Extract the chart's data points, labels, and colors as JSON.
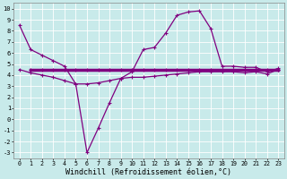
{
  "xlabel": "Windchill (Refroidissement éolien,°C)",
  "bg_color": "#c8eaea",
  "line_color": "#800080",
  "grid_color": "#aacccc",
  "ylim": [
    -3.5,
    10.5
  ],
  "xlim": [
    -0.5,
    23.5
  ],
  "yticks": [
    10,
    9,
    8,
    7,
    6,
    5,
    4,
    3,
    2,
    1,
    0,
    -1,
    -2,
    -3
  ],
  "s1_x": [
    0,
    1,
    2,
    3,
    4,
    5,
    6,
    7,
    8,
    9,
    10,
    11,
    12,
    13,
    14,
    15,
    16,
    17,
    18,
    19,
    20,
    21,
    22,
    23
  ],
  "s1_y": [
    8.5,
    6.3,
    5.8,
    5.3,
    4.8,
    3.2,
    -3.0,
    -0.8,
    1.5,
    3.7,
    4.3,
    6.3,
    6.5,
    7.8,
    9.4,
    9.7,
    9.8,
    8.2,
    4.8,
    4.8,
    4.7,
    4.7,
    4.3,
    4.6
  ],
  "s2_x": [
    1,
    2,
    3,
    4,
    5,
    6,
    7,
    8,
    9,
    10,
    11,
    12,
    13,
    14,
    15,
    16,
    17,
    18,
    19,
    20,
    21,
    22,
    23
  ],
  "s2_y": [
    4.5,
    4.5,
    4.5,
    4.5,
    4.5,
    4.5,
    4.5,
    4.5,
    4.5,
    4.5,
    4.5,
    4.5,
    4.5,
    4.5,
    4.5,
    4.5,
    4.5,
    4.5,
    4.5,
    4.5,
    4.5,
    4.5,
    4.5
  ],
  "s3_x": [
    0,
    1,
    2,
    3,
    4,
    5,
    6,
    7,
    8,
    9,
    10,
    11,
    12,
    13,
    14,
    15,
    16,
    17,
    18,
    19,
    20,
    21,
    22,
    23
  ],
  "s3_y": [
    4.5,
    4.2,
    4.0,
    3.8,
    3.5,
    3.2,
    3.2,
    3.3,
    3.5,
    3.7,
    3.8,
    3.8,
    3.9,
    4.0,
    4.1,
    4.2,
    4.3,
    4.3,
    4.3,
    4.3,
    4.2,
    4.3,
    4.1,
    4.5
  ]
}
